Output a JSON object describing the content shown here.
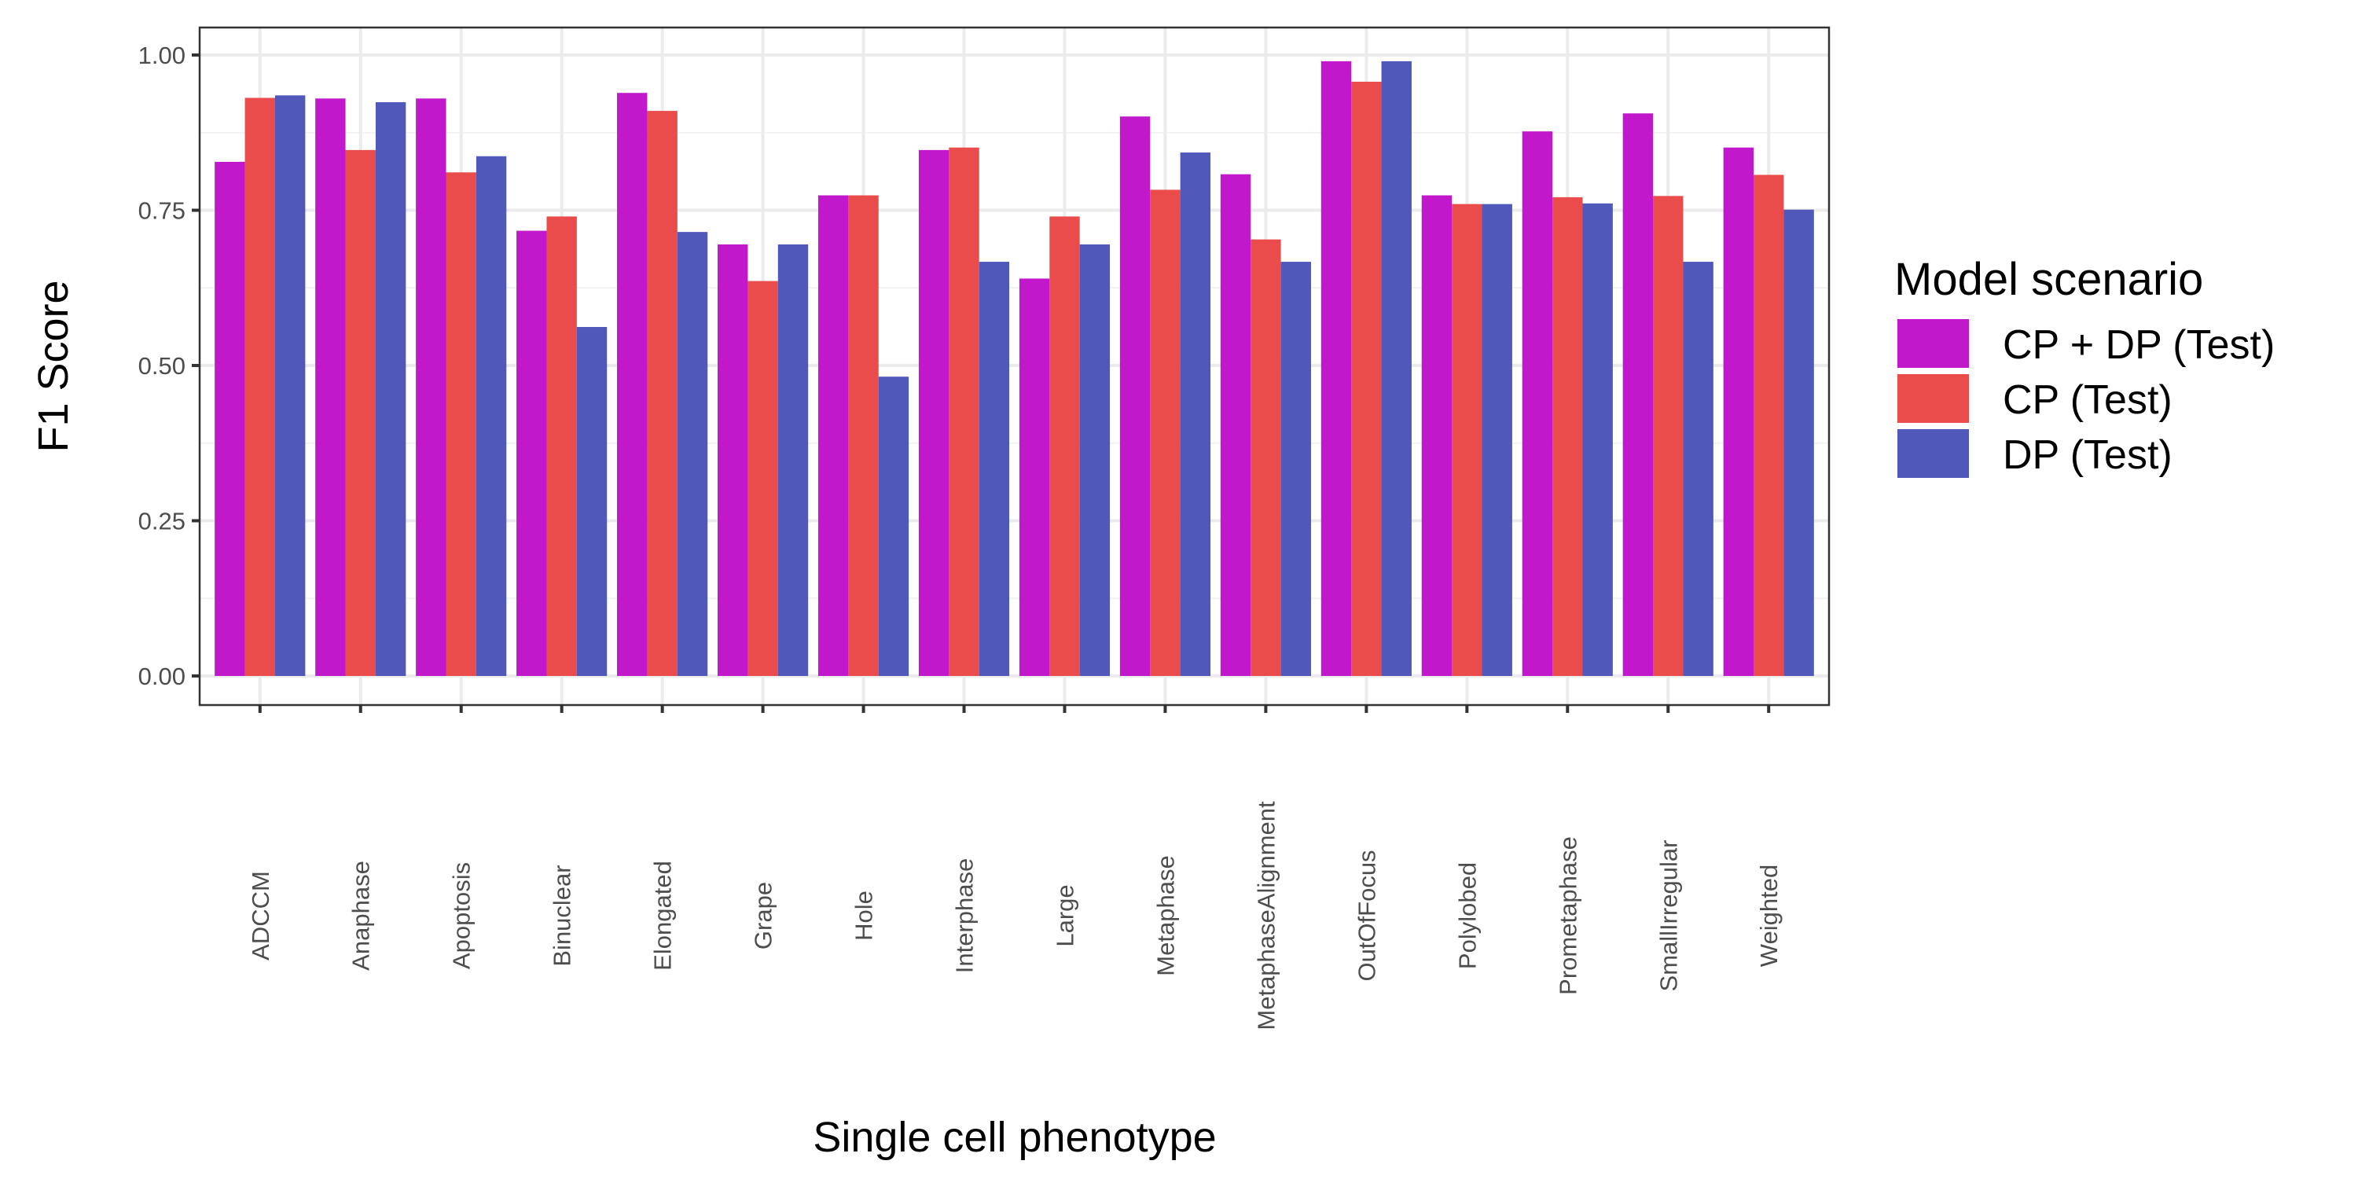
{
  "chart_data": {
    "type": "bar",
    "title": "",
    "xlabel": "Single cell phenotype",
    "ylabel": "F1 Score",
    "ylim": [
      0,
      1
    ],
    "yticks": [
      "0.00",
      "0.25",
      "0.50",
      "0.75",
      "1.00"
    ],
    "grid": true,
    "legend": {
      "title": "Model scenario",
      "placement": "right"
    },
    "categories": [
      "ADCCM",
      "Anaphase",
      "Apoptosis",
      "Binuclear",
      "Elongated",
      "Grape",
      "Hole",
      "Interphase",
      "Large",
      "Metaphase",
      "MetaphaseAlignment",
      "OutOfFocus",
      "Polylobed",
      "Prometaphase",
      "SmallIrregular",
      "Weighted"
    ],
    "series": [
      {
        "name": "CP + DP (Test)",
        "color": "#C018CA",
        "values": [
          0.828,
          0.93,
          0.93,
          0.717,
          0.939,
          0.695,
          0.774,
          0.847,
          0.64,
          0.901,
          0.808,
          0.99,
          0.774,
          0.877,
          0.906,
          0.851
        ]
      },
      {
        "name": "CP (Test)",
        "color": "#EA4B4B",
        "values": [
          0.931,
          0.847,
          0.811,
          0.74,
          0.91,
          0.636,
          0.774,
          0.851,
          0.74,
          0.783,
          0.703,
          0.957,
          0.76,
          0.771,
          0.773,
          0.807
        ]
      },
      {
        "name": "DP (Test)",
        "color": "#5058BA",
        "values": [
          0.935,
          0.924,
          0.837,
          0.562,
          0.715,
          0.695,
          0.482,
          0.667,
          0.695,
          0.843,
          0.667,
          0.99,
          0.76,
          0.761,
          0.667,
          0.751
        ]
      }
    ]
  }
}
